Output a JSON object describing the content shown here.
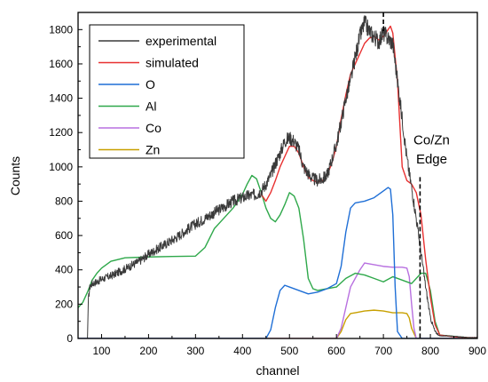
{
  "chart_data": {
    "type": "line",
    "xlabel": "channel",
    "ylabel": "Counts",
    "xlim": [
      50,
      900
    ],
    "ylim": [
      0,
      1900
    ],
    "x_ticks": [
      100,
      200,
      300,
      400,
      500,
      600,
      700,
      800,
      900
    ],
    "y_ticks": [
      0,
      200,
      400,
      600,
      800,
      1000,
      1200,
      1400,
      1600,
      1800
    ],
    "legend_position": "top-left",
    "annotations": [
      {
        "text": "Co/Zn",
        "x": 780,
        "y": 1130
      },
      {
        "text": "Edge",
        "x": 780,
        "y": 1020
      }
    ],
    "reference_lines": [
      {
        "style": "dashed",
        "points": [
          [
            700,
            1900
          ],
          [
            700,
            1780
          ]
        ]
      },
      {
        "style": "dashed",
        "points": [
          [
            778,
            940
          ],
          [
            778,
            0
          ]
        ]
      }
    ],
    "series": [
      {
        "name": "experimental",
        "color": "#3a3a3a",
        "noisy": true,
        "x": [
          50,
          70,
          72,
          75,
          80,
          90,
          100,
          120,
          150,
          180,
          200,
          230,
          260,
          290,
          320,
          350,
          380,
          410,
          430,
          440,
          450,
          460,
          470,
          480,
          490,
          500,
          510,
          520,
          530,
          540,
          550,
          560,
          570,
          580,
          590,
          600,
          610,
          620,
          630,
          640,
          650,
          660,
          670,
          680,
          690,
          700,
          710,
          720,
          730,
          740,
          750,
          760,
          770,
          780,
          790,
          800,
          810,
          820,
          840,
          860,
          880,
          900
        ],
        "y": [
          0,
          0,
          230,
          300,
          320,
          330,
          345,
          365,
          405,
          450,
          490,
          540,
          590,
          650,
          700,
          750,
          800,
          830,
          840,
          860,
          900,
          950,
          1020,
          1080,
          1150,
          1170,
          1150,
          1100,
          1000,
          960,
          930,
          920,
          930,
          950,
          1040,
          1130,
          1260,
          1400,
          1500,
          1640,
          1760,
          1840,
          1790,
          1760,
          1730,
          1780,
          1750,
          1720,
          1500,
          1280,
          1050,
          880,
          700,
          500,
          300,
          120,
          40,
          15,
          15,
          10,
          5,
          5
        ]
      },
      {
        "name": "simulated",
        "color": "#e83030",
        "noisy": false,
        "x": [
          440,
          450,
          460,
          470,
          480,
          490,
          500,
          510,
          520,
          530,
          540,
          550,
          560,
          570,
          580,
          590,
          600,
          610,
          620,
          630,
          640,
          650,
          660,
          670,
          680,
          690,
          700,
          710,
          715,
          720,
          730,
          740,
          750,
          760,
          770,
          780,
          790,
          800,
          810,
          820,
          850,
          880,
          900
        ],
        "y": [
          840,
          800,
          850,
          920,
          1000,
          1060,
          1120,
          1120,
          1080,
          1000,
          940,
          920,
          910,
          920,
          950,
          1020,
          1120,
          1280,
          1420,
          1540,
          1600,
          1660,
          1720,
          1750,
          1760,
          1740,
          1760,
          1800,
          1820,
          1780,
          1500,
          1000,
          920,
          900,
          850,
          720,
          460,
          240,
          80,
          20,
          10,
          5,
          5
        ]
      },
      {
        "name": "O",
        "color": "#1f6fd6",
        "noisy": false,
        "x": [
          50,
          450,
          460,
          470,
          480,
          490,
          500,
          520,
          540,
          560,
          580,
          600,
          610,
          620,
          630,
          640,
          660,
          680,
          700,
          710,
          715,
          720,
          725,
          730,
          740,
          760,
          900
        ],
        "y": [
          0,
          0,
          50,
          180,
          280,
          310,
          300,
          280,
          260,
          270,
          290,
          320,
          420,
          620,
          760,
          790,
          800,
          820,
          860,
          880,
          870,
          720,
          300,
          40,
          0,
          0,
          0
        ]
      },
      {
        "name": "Al",
        "color": "#2ea84a",
        "noisy": false,
        "x": [
          50,
          60,
          70,
          80,
          90,
          100,
          120,
          150,
          200,
          250,
          300,
          320,
          340,
          360,
          380,
          400,
          410,
          420,
          430,
          440,
          450,
          460,
          470,
          480,
          490,
          500,
          510,
          520,
          530,
          540,
          550,
          560,
          580,
          600,
          620,
          640,
          660,
          680,
          700,
          720,
          740,
          760,
          780,
          790,
          800,
          810,
          820,
          900
        ],
        "y": [
          180,
          210,
          270,
          340,
          380,
          410,
          450,
          470,
          475,
          478,
          480,
          530,
          640,
          700,
          760,
          840,
          900,
          950,
          930,
          850,
          760,
          700,
          680,
          720,
          780,
          850,
          830,
          760,
          580,
          350,
          290,
          280,
          290,
          300,
          350,
          380,
          370,
          350,
          330,
          360,
          340,
          320,
          380,
          380,
          280,
          100,
          20,
          0
        ]
      },
      {
        "name": "Co",
        "color": "#b870e0",
        "noisy": false,
        "x": [
          50,
          600,
          610,
          620,
          630,
          640,
          650,
          660,
          680,
          700,
          720,
          740,
          750,
          755,
          760,
          765,
          770,
          780,
          900
        ],
        "y": [
          0,
          0,
          60,
          180,
          300,
          350,
          400,
          440,
          430,
          420,
          415,
          415,
          410,
          360,
          200,
          60,
          0,
          0,
          0
        ]
      },
      {
        "name": "Zn",
        "color": "#c8a000",
        "noisy": false,
        "x": [
          50,
          600,
          610,
          620,
          630,
          640,
          650,
          660,
          680,
          700,
          720,
          740,
          750,
          755,
          760,
          770,
          780,
          900
        ],
        "y": [
          0,
          0,
          40,
          110,
          145,
          150,
          155,
          160,
          165,
          160,
          150,
          150,
          145,
          120,
          60,
          0,
          0,
          0
        ]
      }
    ]
  }
}
